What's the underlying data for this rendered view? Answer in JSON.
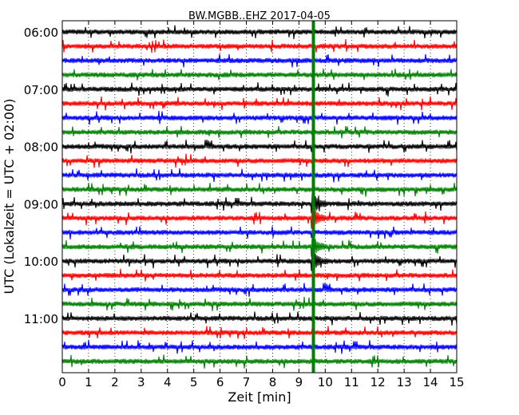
{
  "chart_data": {
    "type": "line",
    "title": "BW.MGBB..EHZ 2017-04-05",
    "xlabel": "Zeit  [min]",
    "ylabel": "UTC (Lokalzeit = UTC + 02:00)",
    "xlim": [
      0,
      15
    ],
    "x_ticks": [
      "0",
      "1",
      "2",
      "3",
      "4",
      "5",
      "6",
      "7",
      "8",
      "9",
      "10",
      "11",
      "12",
      "13",
      "14",
      "15"
    ],
    "y_ticks": [
      "06:00",
      "07:00",
      "08:00",
      "09:00",
      "10:00",
      "11:00"
    ],
    "grid": "vertical dotted at each minute",
    "trace_interval_minutes": 15,
    "first_trace_start": "06:00",
    "trace_starts": [
      "06:00",
      "06:15",
      "06:30",
      "06:45",
      "07:00",
      "07:15",
      "07:30",
      "07:45",
      "08:00",
      "08:15",
      "08:30",
      "08:45",
      "09:00",
      "09:15",
      "09:30",
      "09:45",
      "10:00",
      "10:15",
      "10:30",
      "10:45",
      "11:00",
      "11:15",
      "11:30",
      "11:45"
    ],
    "trace_colors": [
      "#000000",
      "#ff0000",
      "#0000ff",
      "#008000"
    ],
    "event_marker": {
      "x_minute": 9.55,
      "color": "#008000"
    },
    "event_traces": [
      "09:00",
      "09:15",
      "09:45",
      "10:00"
    ]
  }
}
